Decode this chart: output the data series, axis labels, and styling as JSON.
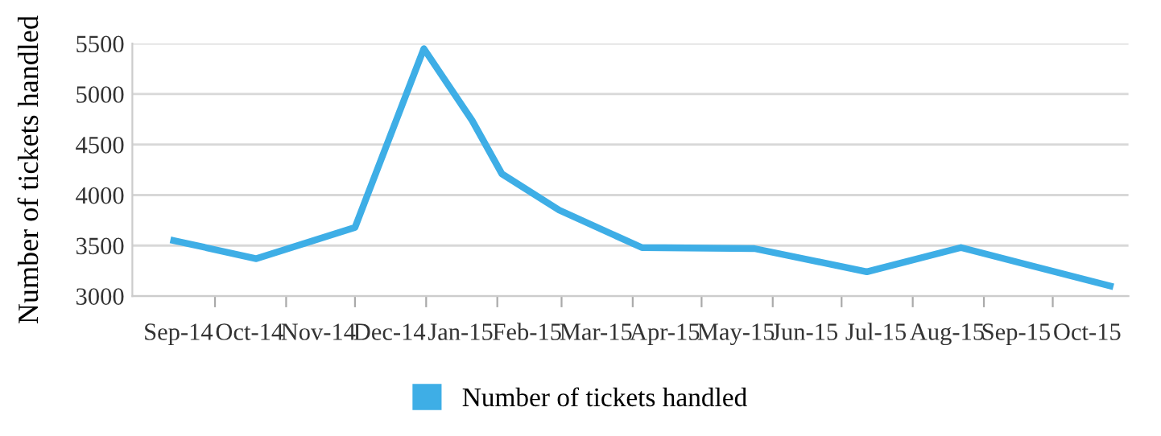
{
  "chart_data": {
    "type": "line",
    "ylabel": "Number of tickets handled",
    "x": [
      "2014-09-13",
      "2014-10-19",
      "2014-12-01",
      "2014-12-31",
      "2015-01-21",
      "2015-02-03",
      "2015-02-28",
      "2015-04-05",
      "2015-05-24",
      "2015-07-12",
      "2015-08-22",
      "2015-10-26"
    ],
    "series": [
      {
        "name": "Number of tickets handled",
        "color": "#3eaee6",
        "values": [
          3550,
          3370,
          3680,
          5450,
          4740,
          4210,
          3850,
          3480,
          3470,
          3240,
          3480,
          3100
        ]
      }
    ],
    "xlim": [
      "2014-08-26",
      "2015-11-03"
    ],
    "xticks": [
      {
        "value": "2014-09-15",
        "label": "Sep-14"
      },
      {
        "value": "2014-10-01",
        "label": null
      },
      {
        "value": "2014-10-16",
        "label": "Oct-14"
      },
      {
        "value": "2014-11-01",
        "label": null
      },
      {
        "value": "2014-11-15",
        "label": "Nov-14"
      },
      {
        "value": "2014-12-01",
        "label": null
      },
      {
        "value": "2014-12-16",
        "label": "Dec-14"
      },
      {
        "value": "2015-01-01",
        "label": null
      },
      {
        "value": "2015-01-16",
        "label": "Jan-15"
      },
      {
        "value": "2015-02-01",
        "label": null
      },
      {
        "value": "2015-02-14",
        "label": "Feb-15"
      },
      {
        "value": "2015-03-01",
        "label": null
      },
      {
        "value": "2015-03-16",
        "label": "Mar-15"
      },
      {
        "value": "2015-04-01",
        "label": null
      },
      {
        "value": "2015-04-15",
        "label": "Apr-15"
      },
      {
        "value": "2015-05-01",
        "label": null
      },
      {
        "value": "2015-05-16",
        "label": "May-15"
      },
      {
        "value": "2015-06-01",
        "label": null
      },
      {
        "value": "2015-06-15",
        "label": "Jun-15"
      },
      {
        "value": "2015-07-01",
        "label": null
      },
      {
        "value": "2015-07-16",
        "label": "Jul-15"
      },
      {
        "value": "2015-08-01",
        "label": null
      },
      {
        "value": "2015-08-16",
        "label": "Aug-15"
      },
      {
        "value": "2015-09-01",
        "label": null
      },
      {
        "value": "2015-09-15",
        "label": "Sep-15"
      },
      {
        "value": "2015-10-01",
        "label": null
      },
      {
        "value": "2015-10-16",
        "label": "Oct-15"
      }
    ],
    "ylim": [
      3000,
      5500
    ],
    "yticks": [
      3000,
      3500,
      4000,
      4500,
      5000,
      5500
    ],
    "grid": "y",
    "legend": "bottom",
    "marker": "none",
    "line_style": "solid"
  }
}
